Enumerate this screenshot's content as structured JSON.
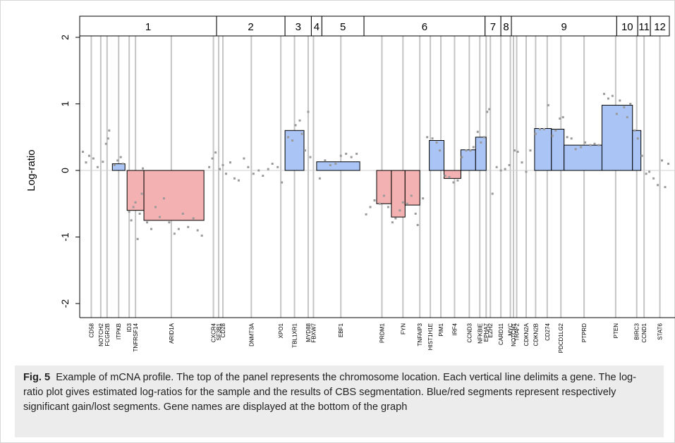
{
  "chart_data": {
    "type": "segment-profile",
    "ylabel": "Log-ratio",
    "ylim": [
      -2,
      2
    ],
    "yticks": [
      "2",
      "1",
      "0",
      "-1",
      "-2"
    ],
    "chromosomes": [
      {
        "label": "1",
        "from": 0.0,
        "to": 13.0
      },
      {
        "label": "2",
        "from": 13.0,
        "to": 19.5
      },
      {
        "label": "3",
        "from": 19.5,
        "to": 22.0
      },
      {
        "label": "4",
        "from": 22.0,
        "to": 23.0
      },
      {
        "label": "5",
        "from": 23.0,
        "to": 27.0
      },
      {
        "label": "6",
        "from": 27.0,
        "to": 38.5
      },
      {
        "label": "7",
        "from": 38.5,
        "to": 40.0
      },
      {
        "label": "8",
        "from": 40.0,
        "to": 41.0
      },
      {
        "label": "9",
        "from": 41.0,
        "to": 51.0
      },
      {
        "label": "10",
        "from": 51.0,
        "to": 53.0
      },
      {
        "label": "11",
        "from": 53.0,
        "to": 54.2
      },
      {
        "label": "12",
        "from": 54.2,
        "to": 56.0
      }
    ],
    "genes": [
      {
        "name": "CD58",
        "x": 1.1
      },
      {
        "name": "NOTCH2",
        "x": 2.0
      },
      {
        "name": "FCGR2B",
        "x": 2.6
      },
      {
        "name": "ITPKB",
        "x": 3.7
      },
      {
        "name": "ID3",
        "x": 4.7
      },
      {
        "name": "TNFRSF14",
        "x": 5.3
      },
      {
        "name": "ARID1A",
        "x": 8.7
      },
      {
        "name": "CXCR4",
        "x": 12.7
      },
      {
        "name": "SF3B1",
        "x": 13.2
      },
      {
        "name": "CD28",
        "x": 13.6
      },
      {
        "name": "DNMT3A",
        "x": 16.3
      },
      {
        "name": "XPO1",
        "x": 19.1
      },
      {
        "name": "TBL1XR1",
        "x": 20.4
      },
      {
        "name": "MYD88",
        "x": 21.7
      },
      {
        "name": "FBXW7",
        "x": 22.2
      },
      {
        "name": "EBF1",
        "x": 24.8
      },
      {
        "name": "PRDM1",
        "x": 28.7
      },
      {
        "name": "FYN",
        "x": 30.7
      },
      {
        "name": "TNFAIP3",
        "x": 32.3
      },
      {
        "name": "HIST1H1E",
        "x": 33.3
      },
      {
        "name": "PIM1",
        "x": 34.3
      },
      {
        "name": "IRF4",
        "x": 35.6
      },
      {
        "name": "CCND3",
        "x": 37.0
      },
      {
        "name": "NFKBIE",
        "x": 38.0
      },
      {
        "name": "EPHA7",
        "x": 38.6
      },
      {
        "name": "EZH2",
        "x": 39.0
      },
      {
        "name": "CARD11",
        "x": 40.0
      },
      {
        "name": "MYC",
        "x": 40.9
      },
      {
        "name": "NOTCH1",
        "x": 41.2
      },
      {
        "name": "TRAF2",
        "x": 41.5
      },
      {
        "name": "CDKN2A",
        "x": 42.4
      },
      {
        "name": "CDKN2B",
        "x": 43.3
      },
      {
        "name": "CD274",
        "x": 44.4
      },
      {
        "name": "PDCD1LG2",
        "x": 45.7
      },
      {
        "name": "PTPRD",
        "x": 47.9
      },
      {
        "name": "PTEN",
        "x": 50.9
      },
      {
        "name": "BIRC3",
        "x": 52.9
      },
      {
        "name": "CCND1",
        "x": 53.6
      },
      {
        "name": "STAT6",
        "x": 55.1
      }
    ],
    "segments": [
      {
        "start": 3.1,
        "end": 4.3,
        "value": 0.1,
        "status": "gain"
      },
      {
        "start": 4.5,
        "end": 6.1,
        "value": -0.6,
        "status": "loss"
      },
      {
        "start": 6.1,
        "end": 11.8,
        "value": -0.75,
        "status": "loss"
      },
      {
        "start": 19.5,
        "end": 21.3,
        "value": 0.6,
        "status": "gain"
      },
      {
        "start": 22.5,
        "end": 26.6,
        "value": 0.13,
        "status": "gain"
      },
      {
        "start": 28.2,
        "end": 29.6,
        "value": -0.5,
        "status": "loss"
      },
      {
        "start": 29.6,
        "end": 30.9,
        "value": -0.7,
        "status": "loss"
      },
      {
        "start": 30.9,
        "end": 32.3,
        "value": -0.52,
        "status": "loss"
      },
      {
        "start": 33.2,
        "end": 34.6,
        "value": 0.45,
        "status": "gain"
      },
      {
        "start": 34.6,
        "end": 36.2,
        "value": -0.12,
        "status": "neutral-loss"
      },
      {
        "start": 36.2,
        "end": 37.6,
        "value": 0.31,
        "status": "gain"
      },
      {
        "start": 37.6,
        "end": 38.6,
        "value": 0.5,
        "status": "gain"
      },
      {
        "start": 43.2,
        "end": 44.8,
        "value": 0.63,
        "status": "gain"
      },
      {
        "start": 44.8,
        "end": 46.0,
        "value": 0.62,
        "status": "gain"
      },
      {
        "start": 46.0,
        "end": 49.6,
        "value": 0.38,
        "status": "gain"
      },
      {
        "start": 49.6,
        "end": 52.5,
        "value": 0.98,
        "status": "gain"
      },
      {
        "start": 52.5,
        "end": 53.3,
        "value": 0.6,
        "status": "gain"
      }
    ],
    "points": [
      [
        0.3,
        0.28
      ],
      [
        0.6,
        0.12
      ],
      [
        0.9,
        0.22
      ],
      [
        1.3,
        0.18
      ],
      [
        1.7,
        0.05
      ],
      [
        2.2,
        0.13
      ],
      [
        2.5,
        0.4
      ],
      [
        2.7,
        0.48
      ],
      [
        2.8,
        0.6
      ],
      [
        3.3,
        0.08
      ],
      [
        3.6,
        0.15
      ],
      [
        3.9,
        0.2
      ],
      [
        4.1,
        0.1
      ],
      [
        4.7,
        -0.62
      ],
      [
        4.9,
        -0.75
      ],
      [
        5.1,
        -0.55
      ],
      [
        5.3,
        -0.48
      ],
      [
        5.5,
        -1.03
      ],
      [
        5.7,
        -0.65
      ],
      [
        5.9,
        -0.35
      ],
      [
        6.0,
        0.03
      ],
      [
        6.4,
        -0.78
      ],
      [
        6.8,
        -0.88
      ],
      [
        7.2,
        -0.55
      ],
      [
        7.6,
        -0.7
      ],
      [
        8.0,
        -0.42
      ],
      [
        8.5,
        -0.78
      ],
      [
        9.0,
        -0.95
      ],
      [
        9.4,
        -0.88
      ],
      [
        9.8,
        -0.65
      ],
      [
        10.3,
        -0.85
      ],
      [
        10.8,
        -0.72
      ],
      [
        11.2,
        -0.9
      ],
      [
        11.6,
        -0.98
      ],
      [
        12.3,
        0.05
      ],
      [
        12.6,
        0.18
      ],
      [
        12.9,
        0.27
      ],
      [
        13.3,
        0.02
      ],
      [
        13.6,
        0.08
      ],
      [
        13.9,
        -0.05
      ],
      [
        14.3,
        0.12
      ],
      [
        14.7,
        -0.12
      ],
      [
        15.1,
        -0.15
      ],
      [
        15.6,
        0.18
      ],
      [
        16.0,
        0.05
      ],
      [
        16.5,
        -0.05
      ],
      [
        17.0,
        0.0
      ],
      [
        17.4,
        -0.08
      ],
      [
        17.9,
        0.02
      ],
      [
        18.3,
        0.1
      ],
      [
        18.8,
        0.05
      ],
      [
        19.2,
        -0.18
      ],
      [
        19.8,
        0.5
      ],
      [
        20.2,
        0.45
      ],
      [
        20.5,
        0.68
      ],
      [
        20.9,
        0.75
      ],
      [
        21.1,
        0.55
      ],
      [
        21.4,
        0.3
      ],
      [
        21.7,
        0.88
      ],
      [
        21.9,
        0.2
      ],
      [
        22.8,
        -0.12
      ],
      [
        23.3,
        0.15
      ],
      [
        23.8,
        0.08
      ],
      [
        24.3,
        0.1
      ],
      [
        24.8,
        0.22
      ],
      [
        25.3,
        0.25
      ],
      [
        25.8,
        0.2
      ],
      [
        26.3,
        0.25
      ],
      [
        27.2,
        -0.66
      ],
      [
        27.6,
        -0.55
      ],
      [
        28.0,
        -0.45
      ],
      [
        28.5,
        -0.5
      ],
      [
        28.9,
        -0.38
      ],
      [
        29.3,
        -0.55
      ],
      [
        29.7,
        -0.78
      ],
      [
        30.0,
        -0.72
      ],
      [
        30.4,
        -0.6
      ],
      [
        30.7,
        -0.48
      ],
      [
        31.1,
        -0.5
      ],
      [
        31.5,
        -0.38
      ],
      [
        31.9,
        -0.65
      ],
      [
        32.1,
        -0.82
      ],
      [
        32.6,
        -0.42
      ],
      [
        33.0,
        0.5
      ],
      [
        33.5,
        0.48
      ],
      [
        33.9,
        0.42
      ],
      [
        34.2,
        0.3
      ],
      [
        34.7,
        -0.08
      ],
      [
        35.1,
        -0.1
      ],
      [
        35.5,
        -0.18
      ],
      [
        35.9,
        -0.15
      ],
      [
        36.3,
        0.2
      ],
      [
        36.7,
        0.3
      ],
      [
        37.1,
        0.3
      ],
      [
        37.4,
        0.35
      ],
      [
        37.8,
        0.58
      ],
      [
        38.1,
        0.42
      ],
      [
        38.4,
        0.5
      ],
      [
        38.7,
        0.88
      ],
      [
        38.9,
        0.92
      ],
      [
        39.2,
        -0.35
      ],
      [
        39.6,
        0.05
      ],
      [
        40.0,
        0.0
      ],
      [
        40.4,
        0.02
      ],
      [
        40.8,
        0.08
      ],
      [
        41.3,
        0.3
      ],
      [
        41.6,
        0.28
      ],
      [
        42.0,
        0.12
      ],
      [
        42.4,
        -0.02
      ],
      [
        42.8,
        0.3
      ],
      [
        43.3,
        0.55
      ],
      [
        43.7,
        0.62
      ],
      [
        44.1,
        0.62
      ],
      [
        44.5,
        0.98
      ],
      [
        44.9,
        0.52
      ],
      [
        45.2,
        0.6
      ],
      [
        45.6,
        0.78
      ],
      [
        45.9,
        0.8
      ],
      [
        46.3,
        0.5
      ],
      [
        46.7,
        0.48
      ],
      [
        47.1,
        0.32
      ],
      [
        47.6,
        0.35
      ],
      [
        48.0,
        0.42
      ],
      [
        48.5,
        0.38
      ],
      [
        48.9,
        0.4
      ],
      [
        49.3,
        0.38
      ],
      [
        49.8,
        1.15
      ],
      [
        50.2,
        1.08
      ],
      [
        50.6,
        1.12
      ],
      [
        51.0,
        0.85
      ],
      [
        51.3,
        1.05
      ],
      [
        51.7,
        0.95
      ],
      [
        52.0,
        0.8
      ],
      [
        52.3,
        1.0
      ],
      [
        52.7,
        0.6
      ],
      [
        53.0,
        0.48
      ],
      [
        53.4,
        0.22
      ],
      [
        53.8,
        -0.05
      ],
      [
        54.1,
        -0.02
      ],
      [
        54.5,
        -0.12
      ],
      [
        54.9,
        -0.22
      ],
      [
        55.3,
        0.15
      ],
      [
        55.6,
        -0.25
      ],
      [
        55.9,
        0.1
      ]
    ],
    "colors": {
      "gain": "#a9c4f5",
      "loss": "#f3b1b1",
      "neutral-loss": "#f3b1b1",
      "segment_stroke": "#000000",
      "gene_line": "#c4c4c4",
      "point": "#9a9a9a"
    }
  },
  "caption": {
    "label": "Fig. 5",
    "text": "Example of mCNA profile. The top of the panel represents the chromosome location. Each vertical line delimits a gene. The log-ratio plot gives estimated log-ratios for the sample and the results of CBS segmentation. Blue/red segments represent respectively significant gain/lost segments. Gene names are displayed at the bottom of the graph"
  }
}
